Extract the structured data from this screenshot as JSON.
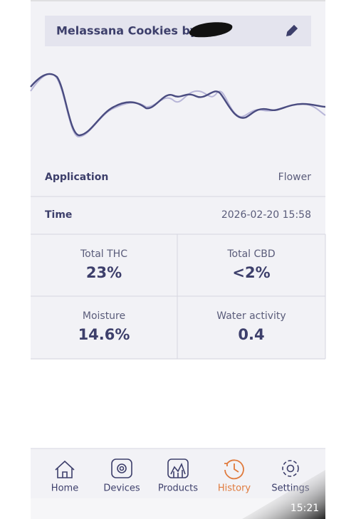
{
  "header": {
    "title": "Melassana Cookies by"
  },
  "details": [
    {
      "label": "Application",
      "value": "Flower"
    },
    {
      "label": "Time",
      "value": "2026-02-20 15:58"
    }
  ],
  "metrics": [
    {
      "label": "Total THC",
      "value": "23%"
    },
    {
      "label": "Total CBD",
      "value": "<2%"
    },
    {
      "label": "Moisture",
      "value": "14.6%"
    },
    {
      "label": "Water activity",
      "value": "0.4"
    }
  ],
  "nav": [
    {
      "label": "Home"
    },
    {
      "label": "Devices"
    },
    {
      "label": "Products"
    },
    {
      "label": "History",
      "active": true
    },
    {
      "label": "Settings"
    }
  ],
  "status": {
    "time": "15:21"
  }
}
